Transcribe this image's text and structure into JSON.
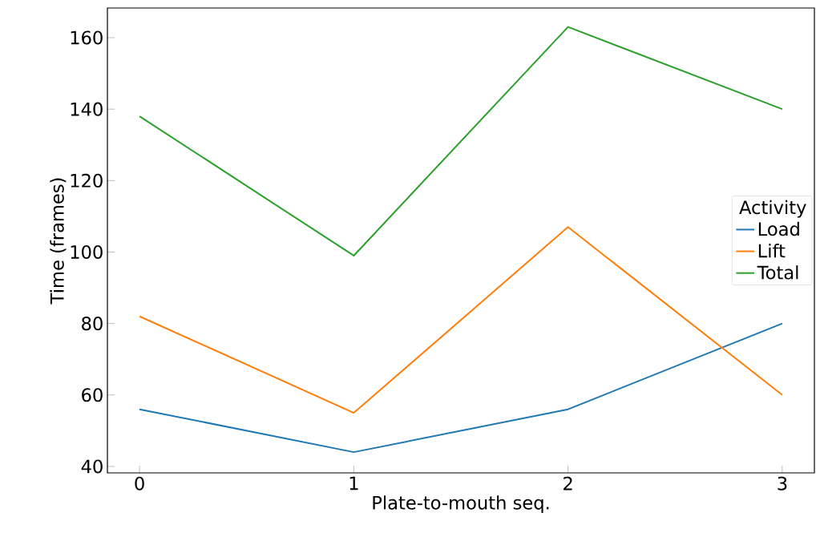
{
  "chart_data": {
    "type": "line",
    "xlabel": "Plate-to-mouth seq.",
    "ylabel": "Time (frames)",
    "legend_title": "Activity",
    "legend": "right",
    "x": [
      0,
      1,
      2,
      3
    ],
    "series": [
      {
        "name": "Load",
        "color": "#1f77b4",
        "values": [
          56,
          44,
          56,
          80
        ]
      },
      {
        "name": "Lift",
        "color": "#ff7f0e",
        "values": [
          82,
          55,
          107,
          60
        ]
      },
      {
        "name": "Total",
        "color": "#2ca02c",
        "values": [
          138,
          99,
          163,
          140
        ]
      }
    ],
    "xlim": [
      -0.15,
      3.15
    ],
    "ylim": [
      38.2,
      168.3
    ],
    "xticks": [
      0,
      1,
      2,
      3
    ],
    "yticks": [
      40,
      60,
      80,
      100,
      120,
      140,
      160
    ],
    "grid": false,
    "marker": "none",
    "line_style": "solid"
  }
}
